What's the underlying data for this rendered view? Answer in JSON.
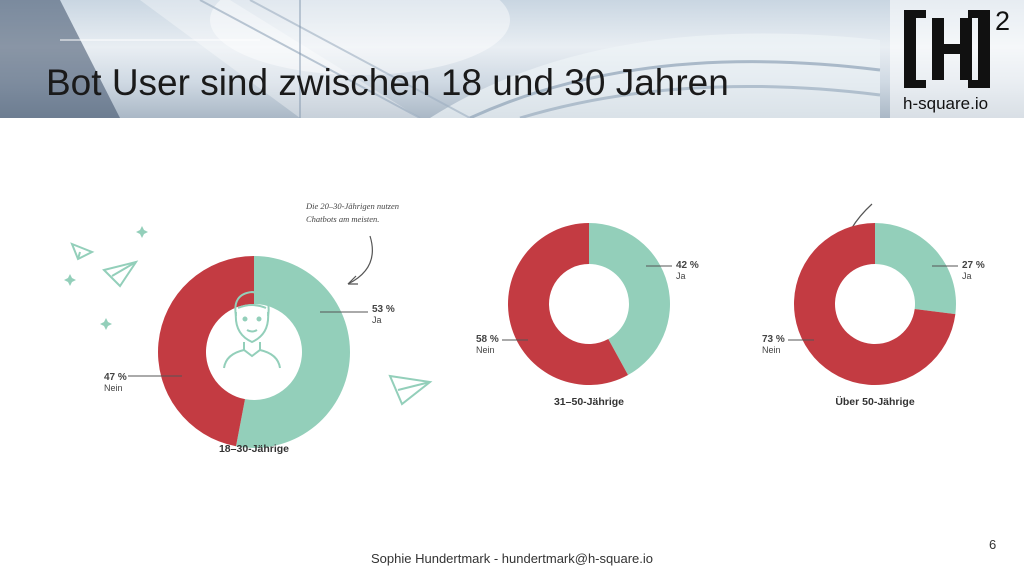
{
  "slide": {
    "title": "Bot User sind zwischen 18 und 30 Jahren",
    "logo_text": "h-square.io",
    "logo_sup": "2",
    "footer": "Sophie Hundertmark - hundertmark@h-square.io",
    "page_number": "6"
  },
  "annotation": "Die 20–30-Jährigen nutzen Chatbots am meisten.",
  "colors": {
    "ja": "#93cfba",
    "nein": "#c33b42",
    "label": "#444444"
  },
  "chart_data": [
    {
      "type": "pie",
      "title": "18–30-Jährige",
      "series": [
        {
          "name": "Ja",
          "label": "53 %",
          "value": 53
        },
        {
          "name": "Nein",
          "label": "47 %",
          "value": 47
        }
      ]
    },
    {
      "type": "pie",
      "title": "31–50-Jährige",
      "series": [
        {
          "name": "Ja",
          "label": "42 %",
          "value": 42
        },
        {
          "name": "Nein",
          "label": "58 %",
          "value": 58
        }
      ]
    },
    {
      "type": "pie",
      "title": "Über 50-Jährige",
      "series": [
        {
          "name": "Ja",
          "label": "27 %",
          "value": 27
        },
        {
          "name": "Nein",
          "label": "73 %",
          "value": 73
        }
      ]
    }
  ]
}
